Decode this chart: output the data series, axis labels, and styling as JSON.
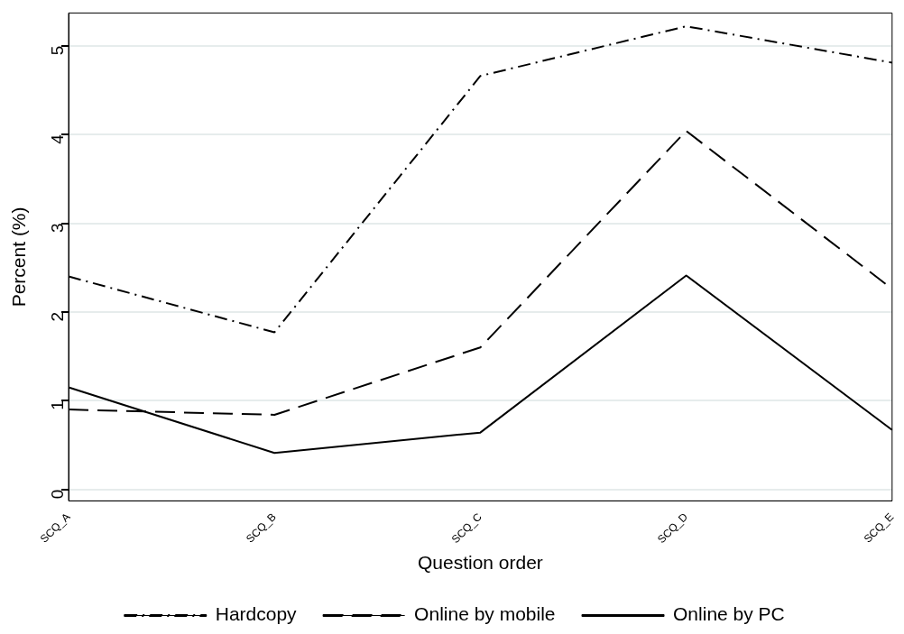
{
  "chart_data": {
    "type": "line",
    "xlabel": "Question order",
    "ylabel": "Percent (%)",
    "categories": [
      "SCQ_A",
      "SCQ_B",
      "SCQ_C",
      "SCQ_D",
      "SCQ_E"
    ],
    "series": [
      {
        "name": "Hardcopy",
        "color": "#000000",
        "line_style": "dashdot",
        "values": [
          2.4,
          1.77,
          4.66,
          5.22,
          4.81
        ]
      },
      {
        "name": "Online by mobile",
        "color": "#000000",
        "line_style": "dashed",
        "values": [
          0.9,
          0.84,
          1.6,
          4.04,
          2.26
        ]
      },
      {
        "name": "Online by PC",
        "color": "#000000",
        "line_style": "solid",
        "values": [
          1.15,
          0.41,
          0.64,
          2.41,
          0.67
        ]
      }
    ],
    "ylim": [
      -0.13,
      5.37
    ],
    "yticks": [
      0,
      1,
      2,
      3,
      4,
      5
    ],
    "grid": "y",
    "legend": "bottom",
    "marker": "none"
  }
}
